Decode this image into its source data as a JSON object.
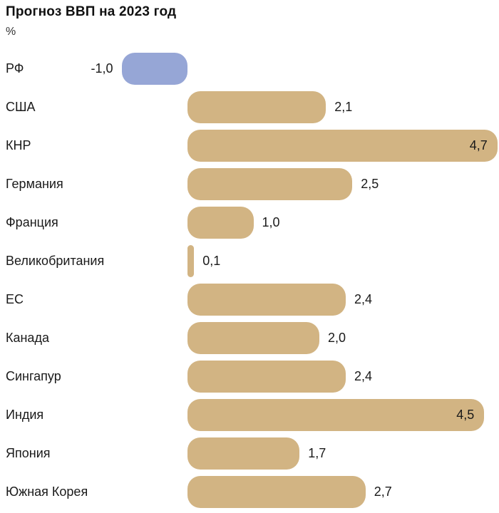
{
  "chart": {
    "title": "Прогноз ВВП на 2023 год",
    "unit_label": "%"
  },
  "chart_data": {
    "type": "bar",
    "orientation": "horizontal",
    "title": "Прогноз ВВП на 2023 год",
    "ylabel": "%",
    "xlabel": "",
    "categories": [
      "РФ",
      "США",
      "КНР",
      "Германия",
      "Франция",
      "Великобритания",
      "ЕС",
      "Канада",
      "Сингапур",
      "Индия",
      "Япония",
      "Южная Корея"
    ],
    "values": [
      -1.0,
      2.1,
      4.7,
      2.5,
      1.0,
      0.1,
      2.4,
      2.0,
      2.4,
      4.5,
      1.7,
      2.7
    ],
    "value_labels": [
      "-1,0",
      "2,1",
      "4,7",
      "2,5",
      "1,0",
      "0,1",
      "2,4",
      "2,0",
      "2,4",
      "4,5",
      "1,7",
      "2,7"
    ],
    "xlim": [
      -1.0,
      4.7
    ],
    "grid": false,
    "legend": "none",
    "colors": {
      "positive_bar": "#d2b483",
      "negative_bar": "#96a6d6",
      "text": "#1a1a1a"
    }
  }
}
